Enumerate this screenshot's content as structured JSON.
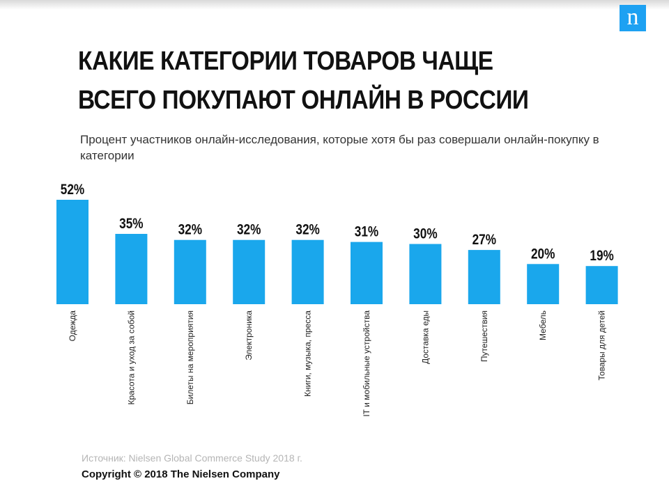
{
  "brand": {
    "logo_letter": "n",
    "logo_color": "#1da1f2"
  },
  "title": "КАКИЕ КАТЕГОРИИ ТОВАРОВ ЧАЩЕ ВСЕГО ПОКУПАЮТ ОНЛАЙН В РОССИИ",
  "subtitle": "Процент участников онлайн-исследования, которые хотя бы раз совершали онлайн-покупку в категории",
  "source": "Источник: Nielsen Global Commerce Study 2018 г.",
  "copyright": "Copyright © 2018 The Nielsen Company",
  "chart_data": {
    "type": "bar",
    "title": "",
    "xlabel": "",
    "ylabel": "",
    "unit": "%",
    "ylim": [
      0,
      52
    ],
    "grid": false,
    "bar_color": "#1aa7ec",
    "categories": [
      "Одежда",
      "Красота и уход за собой",
      "Билеты на мероприятия",
      "Электроника",
      "Книги, музыка, пресса",
      "IT и мобильные устройства",
      "Доставка еды",
      "Путешествия",
      "Мебель",
      "Товары для детей"
    ],
    "values": [
      52,
      35,
      32,
      32,
      32,
      31,
      30,
      27,
      20,
      19
    ],
    "data_labels": [
      "52%",
      "35%",
      "32%",
      "32%",
      "32%",
      "31%",
      "30%",
      "27%",
      "20%",
      "19%"
    ]
  }
}
